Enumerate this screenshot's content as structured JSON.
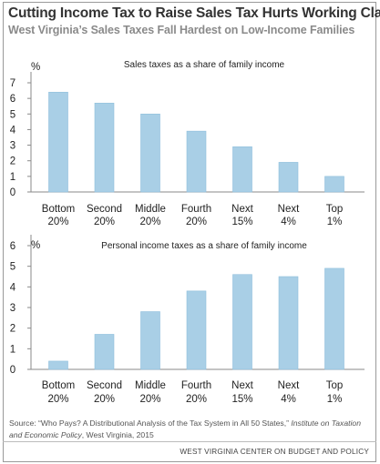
{
  "title": "Cutting Income Tax to Raise Sales Tax Hurts Working Class",
  "subtitle": "West Virginia’s Sales Taxes Fall Hardest on Low-Income Families",
  "source_prefix": "Source: “Who Pays? A Distributional Analysis of the Tax System in All 50 States,”",
  "source_italic": "Institute on Taxation and Economic Policy",
  "source_suffix": ", West Virginia, 2015",
  "footer": "WEST VIRGINIA CENTER ON BUDGET AND POLICY",
  "colors": {
    "bar": "#a9cfe6",
    "bar_stroke": "#8fbfdc",
    "axis": "#8a8a8a"
  },
  "chart_data": [
    {
      "type": "bar",
      "title": "Sales taxes as a share of family income",
      "unit_label": "%",
      "categories": [
        [
          "Bottom",
          "20%"
        ],
        [
          "Second",
          "20%"
        ],
        [
          "Middle",
          "20%"
        ],
        [
          "Fourth",
          "20%"
        ],
        [
          "Next",
          "15%"
        ],
        [
          "Next",
          "4%"
        ],
        [
          "Top",
          "1%"
        ]
      ],
      "values": [
        6.4,
        5.7,
        5.0,
        3.9,
        2.9,
        1.9,
        1.0
      ],
      "ylim": [
        0,
        7
      ],
      "yticks": [
        0,
        1,
        2,
        3,
        4,
        5,
        6,
        7
      ],
      "grid": false
    },
    {
      "type": "bar",
      "title": "Personal income taxes as a share of family income",
      "unit_label": "%",
      "categories": [
        [
          "Bottom",
          "20%"
        ],
        [
          "Second",
          "20%"
        ],
        [
          "Middle",
          "20%"
        ],
        [
          "Fourth",
          "20%"
        ],
        [
          "Next",
          "15%"
        ],
        [
          "Next",
          "4%"
        ],
        [
          "Top",
          "1%"
        ]
      ],
      "values": [
        0.4,
        1.7,
        2.8,
        3.8,
        4.6,
        4.5,
        4.9
      ],
      "ylim": [
        0,
        6
      ],
      "yticks": [
        0,
        1,
        2,
        3,
        4,
        5,
        6
      ],
      "grid": false
    }
  ]
}
